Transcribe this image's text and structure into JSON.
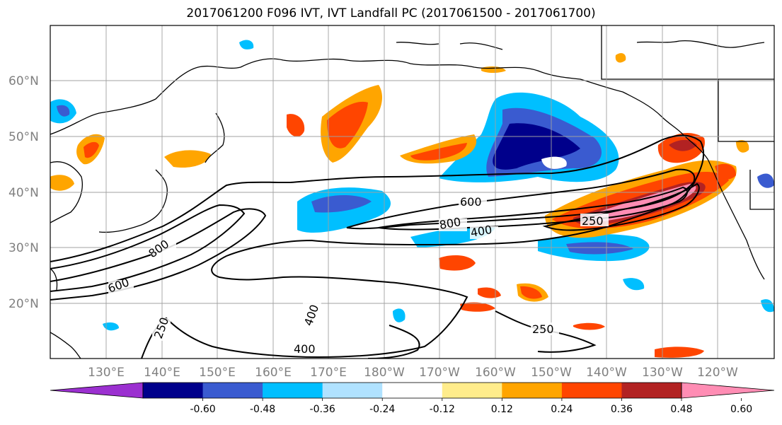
{
  "title": "2017061200 F096 IVT, IVT Landfall PC (2017061500 - 2017061700)",
  "map": {
    "lat_ticks": [
      "60°N",
      "50°N",
      "40°N",
      "30°N",
      "20°N"
    ],
    "lon_ticks": [
      "130°E",
      "140°E",
      "150°E",
      "160°E",
      "170°E",
      "180°W",
      "170°W",
      "160°W",
      "150°W",
      "140°W",
      "130°W",
      "120°W"
    ],
    "contour_labels": [
      "600",
      "800",
      "400",
      "250",
      "800",
      "600",
      "250",
      "400",
      "400",
      "250"
    ],
    "grid": true
  },
  "colorbar": {
    "levels": [
      "-0.60",
      "-0.48",
      "-0.36",
      "-0.24",
      "-0.12",
      "0.12",
      "0.24",
      "0.36",
      "0.48",
      "0.60"
    ],
    "colors": [
      "#9b30d0",
      "#00008b",
      "#3a5bd0",
      "#00bfff",
      "#b0e2ff",
      "#ffffff",
      "#ffec8b",
      "#ffa500",
      "#ff4500",
      "#b22222",
      "#ff8db4"
    ],
    "extend": "both"
  }
}
